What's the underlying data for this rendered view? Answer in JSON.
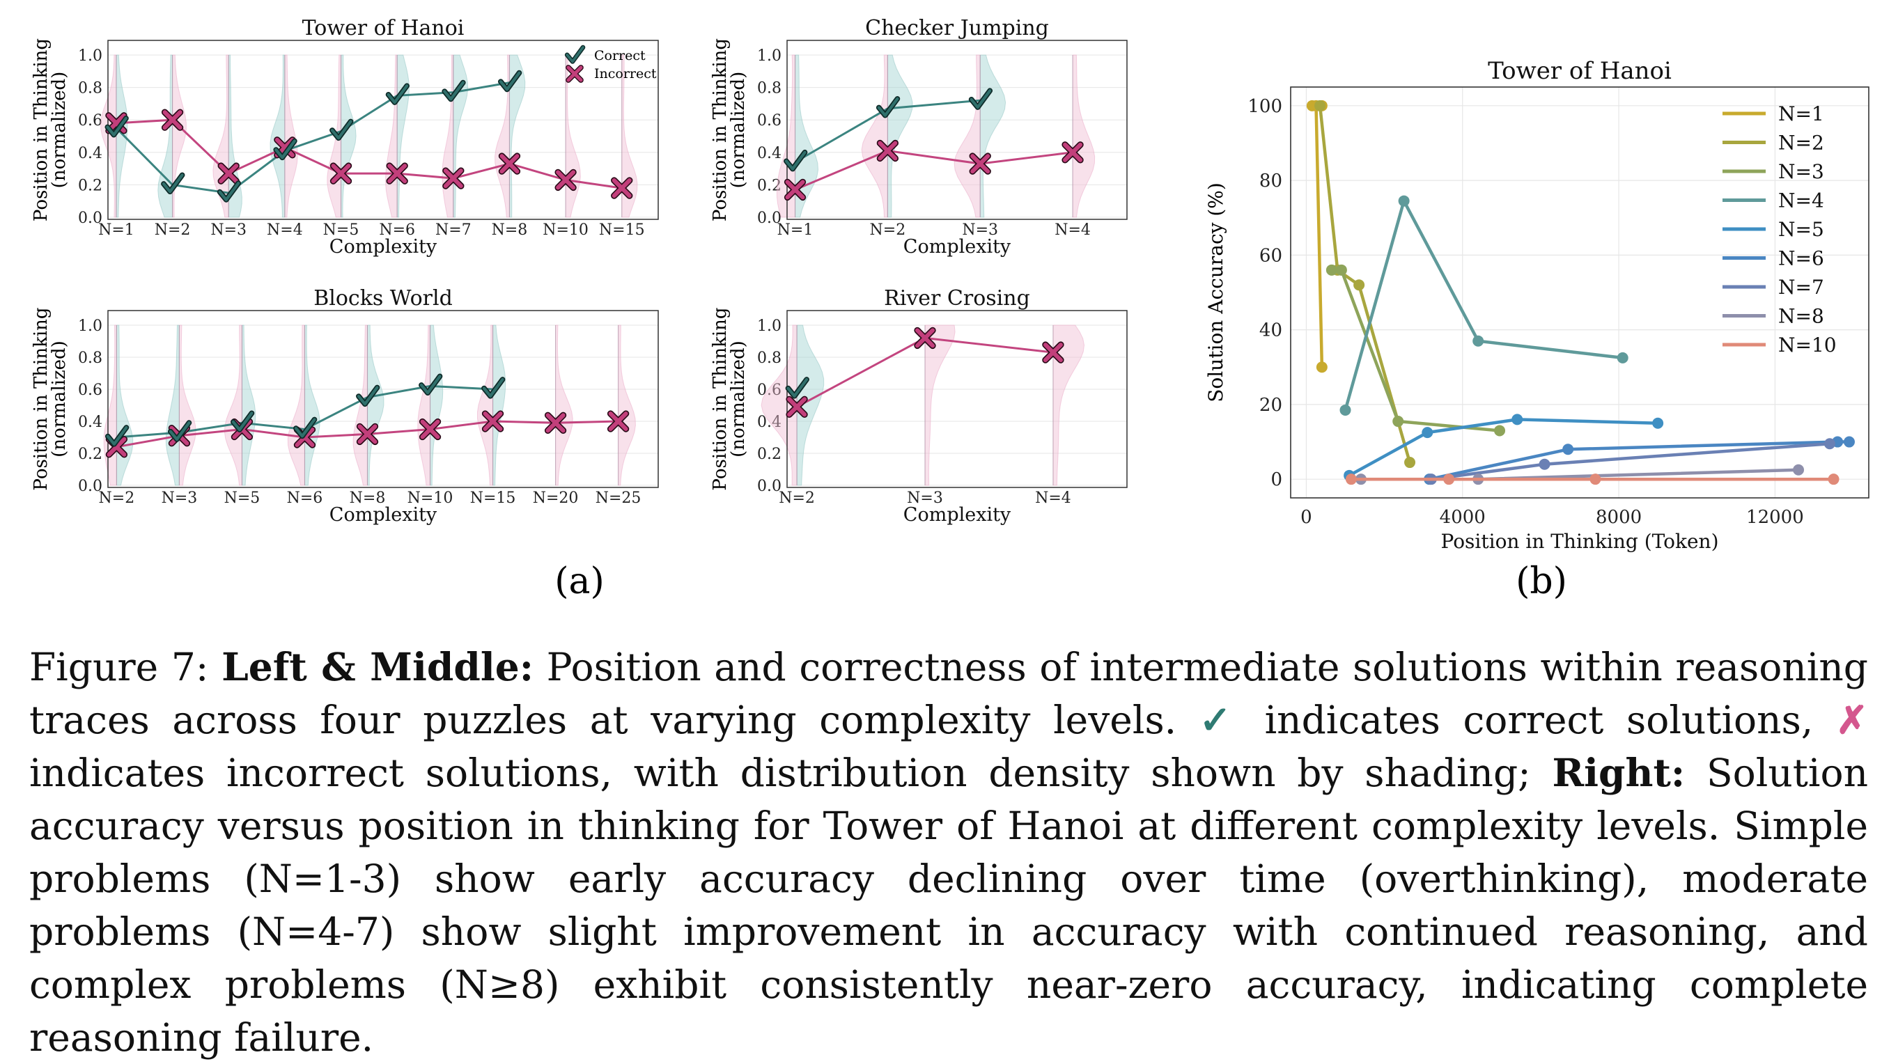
{
  "colors": {
    "correct": "#3b8480",
    "incorrect": "#c3457f",
    "correct_fill": "#2f6f6b",
    "incorrect_fill": "#c23f7b",
    "density_correct": "#9fd3d0",
    "density_incorrect": "#f0bcd2",
    "grid": "#e6e6e6"
  },
  "figure": {
    "label_a": "(a)",
    "label_b": "(b)"
  },
  "caption": {
    "fig_label": "Figure 7:",
    "lm_bold": "Left & Middle:",
    "text1": " Position and correctness of intermediate solutions within reasoning traces across four puzzles at varying complexity levels. ",
    "check_symbol": "✓",
    "text2": " indicates correct solutions, ",
    "cross_symbol": "✗",
    "text3": " indicates incorrect solutions, with distribution density shown by shading; ",
    "right_bold": "Right:",
    "text4": " Solution accuracy versus position in thinking for Tower of Hanoi at different complexity levels. Simple problems (N=1-3) show early accuracy declining over time (overthinking), moderate problems (N=4-7) show slight improvement in accuracy with continued reasoning, and complex problems (N≥8) exhibit consistently near-zero accuracy, indicating complete reasoning failure."
  },
  "chart_data": [
    {
      "type": "line",
      "title": "Tower of Hanoi",
      "xlabel": "Complexity",
      "ylabel": "Position in Thinking\n(normalized)",
      "ylim": [
        0,
        1.0
      ],
      "yticks": [
        "0.0",
        "0.2",
        "0.4",
        "0.6",
        "0.8",
        "1.0"
      ],
      "categories": [
        "N=1",
        "N=2",
        "N=3",
        "N=4",
        "N=5",
        "N=6",
        "N=7",
        "N=8",
        "N=10",
        "N=15"
      ],
      "legend": [
        "Correct",
        "Incorrect"
      ],
      "legend_position": "top-right",
      "series": [
        {
          "name": "Correct",
          "values": [
            0.55,
            0.2,
            0.15,
            0.41,
            0.53,
            0.75,
            0.77,
            0.83,
            null,
            null
          ]
        },
        {
          "name": "Incorrect",
          "values": [
            0.58,
            0.6,
            0.27,
            0.43,
            0.27,
            0.27,
            0.24,
            0.33,
            0.23,
            0.18
          ]
        }
      ]
    },
    {
      "type": "line",
      "title": "Checker Jumping",
      "xlabel": "Complexity",
      "ylabel": "Position in Thinking\n(normalized)",
      "ylim": [
        0,
        1.0
      ],
      "yticks": [
        "0.0",
        "0.2",
        "0.4",
        "0.6",
        "0.8",
        "1.0"
      ],
      "categories": [
        "N=1",
        "N=2",
        "N=3",
        "N=4"
      ],
      "series": [
        {
          "name": "Correct",
          "values": [
            0.34,
            0.67,
            0.72,
            null
          ]
        },
        {
          "name": "Incorrect",
          "values": [
            0.17,
            0.41,
            0.33,
            0.4
          ]
        }
      ]
    },
    {
      "type": "line",
      "title": "Blocks World",
      "xlabel": "Complexity",
      "ylabel": "Position in Thinking\n(normalized)",
      "ylim": [
        0,
        1.0
      ],
      "yticks": [
        "0.0",
        "0.2",
        "0.4",
        "0.6",
        "0.8",
        "1.0"
      ],
      "categories": [
        "N=2",
        "N=3",
        "N=5",
        "N=6",
        "N=8",
        "N=10",
        "N=15",
        "N=20",
        "N=25"
      ],
      "series": [
        {
          "name": "Correct",
          "values": [
            0.3,
            0.33,
            0.39,
            0.35,
            0.55,
            0.62,
            0.6,
            null,
            null
          ]
        },
        {
          "name": "Incorrect",
          "values": [
            0.24,
            0.31,
            0.35,
            0.3,
            0.32,
            0.35,
            0.4,
            0.39,
            0.4
          ]
        }
      ]
    },
    {
      "type": "line",
      "title": "River Crosing",
      "xlabel": "Complexity",
      "ylabel": "Position in Thinking\n(normalized)",
      "ylim": [
        0,
        1.0
      ],
      "yticks": [
        "0.0",
        "0.2",
        "0.4",
        "0.6",
        "0.8",
        "1.0"
      ],
      "categories": [
        "N=2",
        "N=3",
        "N=4"
      ],
      "series": [
        {
          "name": "Correct",
          "values": [
            0.6,
            null,
            null
          ]
        },
        {
          "name": "Incorrect",
          "values": [
            0.49,
            0.92,
            0.83
          ]
        }
      ]
    },
    {
      "type": "line",
      "title": "Tower of Hanoi",
      "xlabel": "Position in Thinking (Token)",
      "ylabel": "Solution Accuracy (%)",
      "xlim": [
        -400,
        14400
      ],
      "ylim": [
        -5,
        105
      ],
      "xticks": [
        0,
        4000,
        8000,
        12000
      ],
      "yticks": [
        0,
        20,
        40,
        60,
        80,
        100
      ],
      "legend_position": "top-right",
      "series": [
        {
          "name": "N=1",
          "color": "#c8aa2e",
          "x": [
            150,
            400,
            250,
            400
          ],
          "y": [
            100,
            100,
            100,
            30
          ]
        },
        {
          "name": "N=2",
          "color": "#a8a63e",
          "x": [
            350,
            800,
            1350,
            2650
          ],
          "y": [
            100,
            56,
            52,
            4.5
          ]
        },
        {
          "name": "N=3",
          "color": "#8ea45a",
          "x": [
            650,
            900,
            2350,
            4950
          ],
          "y": [
            56,
            56,
            15.5,
            13
          ]
        },
        {
          "name": "N=4",
          "color": "#5f9a9a",
          "x": [
            1000,
            2500,
            4400,
            8100
          ],
          "y": [
            18.5,
            74.5,
            37,
            32.5
          ]
        },
        {
          "name": "N=5",
          "color": "#3f8fc3",
          "x": [
            1100,
            3100,
            5400,
            9000
          ],
          "y": [
            1,
            12.5,
            16,
            15
          ]
        },
        {
          "name": "N=6",
          "color": "#4a86c2",
          "x": [
            3150,
            6700,
            13600,
            13900
          ],
          "y": [
            0,
            8,
            10,
            10
          ]
        },
        {
          "name": "N=7",
          "color": "#6a80b4",
          "x": [
            3200,
            6100,
            13400
          ],
          "y": [
            0,
            4,
            9.5
          ]
        },
        {
          "name": "N=8",
          "color": "#8e8fab",
          "x": [
            1400,
            4400,
            12600
          ],
          "y": [
            0,
            0,
            2.5
          ]
        },
        {
          "name": "N=10",
          "color": "#e08a78",
          "x": [
            1150,
            3650,
            7400,
            13500
          ],
          "y": [
            0,
            0,
            0,
            0
          ]
        }
      ]
    }
  ]
}
